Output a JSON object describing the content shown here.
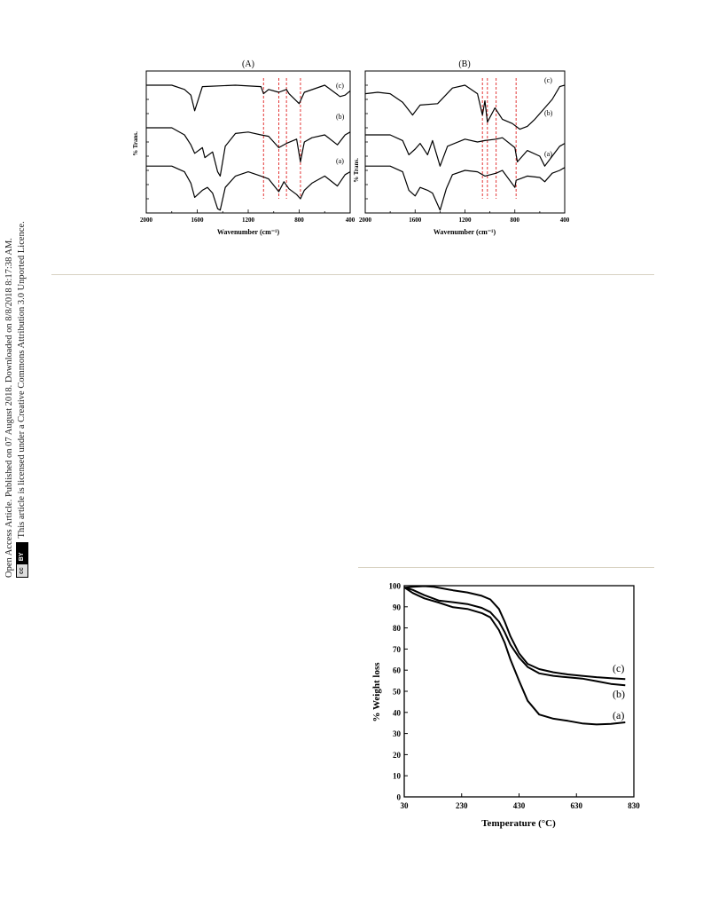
{
  "side_notice": {
    "line1": "Open Access Article. Published on 07 August 2018. Downloaded on 8/8/2018 8:17:38 AM.",
    "line2": "This article is licensed under a Creative Commons Attribution 3.0 Unported Licence.",
    "badge_cc": "cc",
    "badge_by": "BY"
  },
  "figures": {
    "ftir_A": {
      "panel_title": "(A)",
      "ylabel": "% Trans.",
      "xlabel": "Wavenumber (cm⁻¹)",
      "xticks": [
        "2000",
        "1600",
        "1200",
        "800",
        "400"
      ],
      "curve_labels": [
        "(c)",
        "(b)",
        "(a)"
      ]
    },
    "ftir_B": {
      "panel_title": "(B)",
      "ylabel": "% Trans.",
      "xlabel": "Wavenumber (cm⁻¹)",
      "xticks": [
        "2000",
        "1600",
        "1200",
        "800",
        "400"
      ],
      "curve_labels": [
        "(c)",
        "(b)",
        "(a)"
      ]
    },
    "tga": {
      "ylabel": "% Weight loss",
      "xlabel": "Temperature (°C)",
      "xticks": [
        "30",
        "230",
        "430",
        "630",
        "830"
      ],
      "yticks": [
        "0",
        "10",
        "20",
        "30",
        "40",
        "50",
        "60",
        "70",
        "80",
        "90",
        "100"
      ],
      "curve_labels": [
        "(c)",
        "(b)",
        "(a)"
      ]
    }
  },
  "chart_data": [
    {
      "type": "line",
      "title": "(A)",
      "xlabel": "Wavenumber (cm⁻¹)",
      "ylabel": "% Trans.",
      "xlim": [
        2000,
        400
      ],
      "reference_lines_x": [
        1080,
        960,
        900,
        790
      ],
      "series": [
        {
          "name": "(c)",
          "x": [
            2000,
            1800,
            1700,
            1650,
            1620,
            1560,
            1300,
            1100,
            1080,
            1040,
            960,
            900,
            880,
            800,
            760,
            600,
            480,
            440,
            400
          ],
          "y": [
            9,
            9,
            8.7,
            8.3,
            7.2,
            8.9,
            9,
            8.9,
            8.4,
            8.7,
            8.5,
            8.7,
            8.4,
            7.7,
            8.5,
            9,
            8.2,
            8.3,
            8.6
          ]
        },
        {
          "name": "(b)",
          "x": [
            2000,
            1800,
            1700,
            1650,
            1620,
            1560,
            1540,
            1480,
            1440,
            1420,
            1380,
            1300,
            1200,
            1100,
            1040,
            960,
            900,
            820,
            790,
            760,
            700,
            600,
            500,
            440,
            400
          ],
          "y": [
            6,
            6,
            5.5,
            4.8,
            4.2,
            4.6,
            3.9,
            4.3,
            2.9,
            2.6,
            4.7,
            5.6,
            5.7,
            5.5,
            5.4,
            4.6,
            4.9,
            5.2,
            3.6,
            5.0,
            5.3,
            5.5,
            4.8,
            5.5,
            5.7
          ]
        },
        {
          "name": "(a)",
          "x": [
            2000,
            1800,
            1700,
            1650,
            1620,
            1560,
            1520,
            1480,
            1440,
            1420,
            1380,
            1300,
            1200,
            1100,
            1040,
            960,
            920,
            880,
            820,
            790,
            760,
            700,
            600,
            500,
            440,
            400
          ],
          "y": [
            3.3,
            3.3,
            2.9,
            2.1,
            1.1,
            1.6,
            1.8,
            1.4,
            0.3,
            0.2,
            1.8,
            2.6,
            2.9,
            2.6,
            2.4,
            1.5,
            2.2,
            1.7,
            1.3,
            1.0,
            1.6,
            2.1,
            2.6,
            1.9,
            2.7,
            2.9
          ]
        }
      ]
    },
    {
      "type": "line",
      "title": "(B)",
      "xlabel": "Wavenumber (cm⁻¹)",
      "ylabel": "% Trans.",
      "xlim": [
        2000,
        400
      ],
      "reference_lines_x": [
        1060,
        1020,
        950,
        790
      ],
      "series": [
        {
          "name": "(c)",
          "x": [
            2000,
            1900,
            1800,
            1700,
            1620,
            1560,
            1420,
            1300,
            1200,
            1100,
            1060,
            1040,
            1020,
            960,
            900,
            820,
            760,
            700,
            640,
            560,
            500,
            440,
            400
          ],
          "y": [
            8.4,
            8.5,
            8.4,
            7.8,
            6.9,
            7.6,
            7.7,
            8.8,
            9,
            8.4,
            6.9,
            7.9,
            6.4,
            7.4,
            6.6,
            6.3,
            5.9,
            6.1,
            6.6,
            7.4,
            8.0,
            8.9,
            9.0
          ]
        },
        {
          "name": "(b)",
          "x": [
            2000,
            1800,
            1700,
            1650,
            1600,
            1560,
            1500,
            1460,
            1400,
            1340,
            1200,
            1100,
            1040,
            950,
            900,
            800,
            780,
            700,
            600,
            560,
            500,
            440,
            400
          ],
          "y": [
            5.5,
            5.5,
            5.1,
            4.1,
            4.5,
            4.9,
            4.1,
            5.1,
            3.3,
            4.7,
            5.2,
            5.0,
            5.1,
            5.2,
            5.3,
            4.6,
            3.6,
            4.4,
            4.0,
            3.3,
            4.0,
            4.7,
            4.9
          ]
        },
        {
          "name": "(a)",
          "x": [
            2000,
            1800,
            1700,
            1650,
            1600,
            1560,
            1500,
            1460,
            1400,
            1350,
            1300,
            1200,
            1100,
            1040,
            950,
            900,
            800,
            790,
            700,
            600,
            560,
            500,
            440,
            400
          ],
          "y": [
            3.3,
            3.3,
            2.9,
            1.6,
            1.2,
            1.8,
            1.6,
            1.4,
            0.2,
            1.7,
            2.7,
            3.0,
            2.9,
            2.6,
            2.8,
            3.0,
            1.8,
            2.3,
            2.6,
            2.5,
            2.2,
            2.8,
            3.0,
            3.2
          ]
        }
      ]
    },
    {
      "type": "line",
      "xlabel": "Temperature (°C)",
      "ylabel": "% Weight loss",
      "xlim": [
        30,
        830
      ],
      "ylim": [
        0,
        100
      ],
      "series": [
        {
          "name": "(c)",
          "x": [
            30,
            60,
            100,
            130,
            160,
            200,
            250,
            300,
            330,
            360,
            380,
            400,
            430,
            460,
            500,
            550,
            600,
            650,
            700,
            750,
            800
          ],
          "y": [
            99,
            99.5,
            99.8,
            99.5,
            98.8,
            97.8,
            96.8,
            95.2,
            93.5,
            89,
            83,
            76,
            68,
            63,
            60.5,
            59,
            58,
            57.3,
            56.7,
            56.2,
            55.8
          ]
        },
        {
          "name": "(b)",
          "x": [
            30,
            60,
            100,
            150,
            200,
            250,
            300,
            330,
            360,
            380,
            400,
            430,
            460,
            500,
            550,
            600,
            650,
            700,
            750,
            800
          ],
          "y": [
            99.2,
            98,
            95.5,
            93,
            92.2,
            91.3,
            89.5,
            87.5,
            83,
            78,
            72,
            66,
            61.5,
            58.5,
            57.3,
            56.6,
            56,
            54.8,
            53.5,
            52.8
          ]
        },
        {
          "name": "(a)",
          "x": [
            30,
            60,
            100,
            150,
            200,
            250,
            300,
            330,
            360,
            380,
            400,
            430,
            460,
            500,
            550,
            600,
            650,
            700,
            750,
            800
          ],
          "y": [
            99.2,
            96.5,
            94,
            92,
            89.8,
            89,
            87,
            85,
            79,
            73,
            65,
            55,
            45.5,
            39,
            37,
            36,
            34.8,
            34.3,
            34.6,
            35.3
          ]
        }
      ]
    }
  ]
}
